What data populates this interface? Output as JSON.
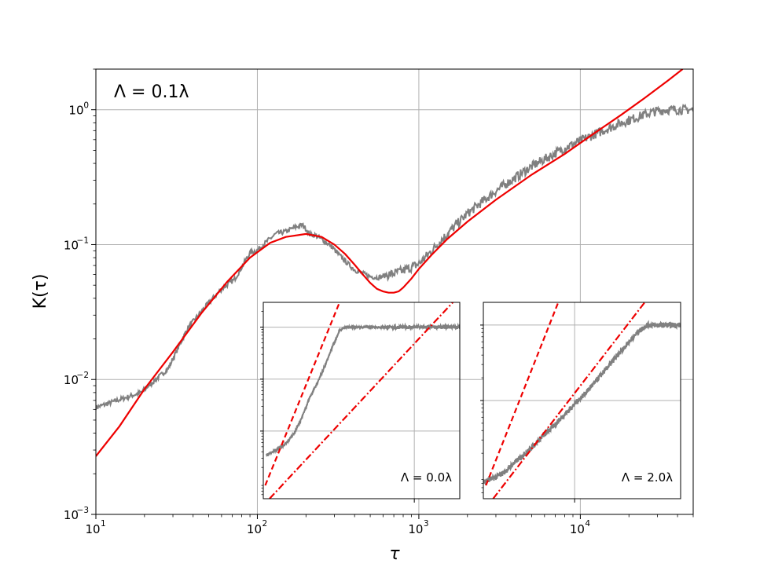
{
  "chart_data": [
    {
      "type": "line",
      "xscale": "log",
      "yscale": "log",
      "xlabel": "τ",
      "ylabel": "K(τ)",
      "xlim": [
        10,
        50000
      ],
      "ylim": [
        0.001,
        2.0
      ],
      "grid": true,
      "annotation": "Λ = 0.1λ",
      "x_ticks": [
        {
          "value": 10,
          "label": "10",
          "exp": "1"
        },
        {
          "value": 100,
          "label": "10",
          "exp": "2"
        },
        {
          "value": 1000,
          "label": "10",
          "exp": "3"
        },
        {
          "value": 10000,
          "label": "10",
          "exp": "4"
        }
      ],
      "y_ticks": [
        {
          "value": 0.001,
          "label": "10",
          "exp": "−3"
        },
        {
          "value": 0.01,
          "label": "10",
          "exp": "−2"
        },
        {
          "value": 0.1,
          "label": "10",
          "exp": "−1"
        },
        {
          "value": 1,
          "label": "10",
          "exp": "0"
        }
      ],
      "series": [
        {
          "color": "#808080",
          "style": "solid",
          "noisy": true,
          "x": [
            10,
            19,
            28,
            37,
            48,
            60,
            72,
            80,
            90,
            100,
            115,
            130,
            150,
            170,
            190,
            200,
            210,
            230,
            260,
            290,
            320,
            360,
            400,
            450,
            500,
            560,
            620,
            700,
            800,
            900,
            1000,
            1200,
            1500,
            2000,
            3000,
            5000,
            8000,
            12000,
            18000,
            25000,
            30000,
            35000,
            40000,
            50000
          ],
          "y": [
            0.0062,
            0.008,
            0.012,
            0.024,
            0.035,
            0.047,
            0.055,
            0.068,
            0.087,
            0.091,
            0.106,
            0.12,
            0.125,
            0.134,
            0.14,
            0.131,
            0.12,
            0.117,
            0.106,
            0.096,
            0.084,
            0.073,
            0.065,
            0.061,
            0.058,
            0.057,
            0.059,
            0.061,
            0.064,
            0.068,
            0.072,
            0.09,
            0.12,
            0.17,
            0.25,
            0.38,
            0.52,
            0.65,
            0.8,
            0.92,
            0.98,
            1.0,
            1.0,
            1.0
          ]
        },
        {
          "color": "#ee0000",
          "style": "solid",
          "x": [
            10,
            14,
            20,
            30,
            45,
            65,
            90,
            120,
            150,
            200,
            250,
            300,
            350,
            400,
            450,
            500,
            550,
            600,
            650,
            700,
            750,
            800,
            900,
            1000,
            1200,
            1500,
            2000,
            3000,
            5000,
            8000,
            12000,
            18000,
            25000,
            35000,
            43000
          ],
          "y": [
            0.0027,
            0.0045,
            0.0085,
            0.016,
            0.031,
            0.053,
            0.08,
            0.103,
            0.114,
            0.12,
            0.114,
            0.1,
            0.085,
            0.071,
            0.06,
            0.052,
            0.047,
            0.045,
            0.044,
            0.044,
            0.045,
            0.048,
            0.056,
            0.066,
            0.084,
            0.11,
            0.148,
            0.215,
            0.33,
            0.47,
            0.66,
            0.92,
            1.22,
            1.65,
            2.0
          ]
        }
      ]
    },
    {
      "type": "line",
      "xscale": "log",
      "yscale": "log",
      "annotation": "Λ = 0.0λ",
      "grid": true,
      "xlim": [
        100,
        2000
      ],
      "ylim": [
        0.0005,
        3
      ],
      "x_grid": [
        1000
      ],
      "y_grid": [
        0.01,
        0.1,
        1
      ],
      "series": [
        {
          "color": "#808080",
          "style": "solid",
          "noisy": true,
          "x": [
            105,
            120,
            140,
            160,
            180,
            200,
            230,
            260,
            290,
            320,
            350,
            400,
            500,
            700,
            1000,
            1400,
            2000
          ],
          "y": [
            0.0035,
            0.0042,
            0.0056,
            0.009,
            0.018,
            0.04,
            0.09,
            0.2,
            0.45,
            0.85,
            1.0,
            1.0,
            1.0,
            1.0,
            1.0,
            1.0,
            1.0
          ]
        },
        {
          "color": "#ee0000",
          "style": "dashed",
          "x": [
            103,
            320
          ],
          "y": [
            0.0009,
            3
          ]
        },
        {
          "color": "#ee0000",
          "style": "dashdot",
          "x": [
            110,
            1800
          ],
          "y": [
            0.0005,
            3
          ]
        }
      ]
    },
    {
      "type": "line",
      "xscale": "log",
      "yscale": "log",
      "annotation": "Λ = 2.0λ",
      "grid": true,
      "xlim": [
        2500,
        50000
      ],
      "ylim": [
        0.005,
        2
      ],
      "x_grid": [
        10000
      ],
      "y_grid": [
        0.1,
        1
      ],
      "series": [
        {
          "color": "#808080",
          "style": "solid",
          "noisy": true,
          "x": [
            2500,
            3000,
            3500,
            4000,
            5000,
            6000,
            7000,
            8000,
            10000,
            12000,
            15000,
            18000,
            22000,
            26000,
            30000,
            35000,
            40000,
            50000
          ],
          "y": [
            0.0085,
            0.0095,
            0.0115,
            0.015,
            0.022,
            0.032,
            0.043,
            0.056,
            0.09,
            0.13,
            0.22,
            0.34,
            0.55,
            0.8,
            1.0,
            1.0,
            1.0,
            1.0
          ]
        },
        {
          "color": "#ee0000",
          "style": "dashed",
          "x": [
            2600,
            7800
          ],
          "y": [
            0.0075,
            2
          ]
        },
        {
          "color": "#ee0000",
          "style": "dashdot",
          "x": [
            2900,
            29000
          ],
          "y": [
            0.005,
            2
          ]
        }
      ]
    }
  ]
}
